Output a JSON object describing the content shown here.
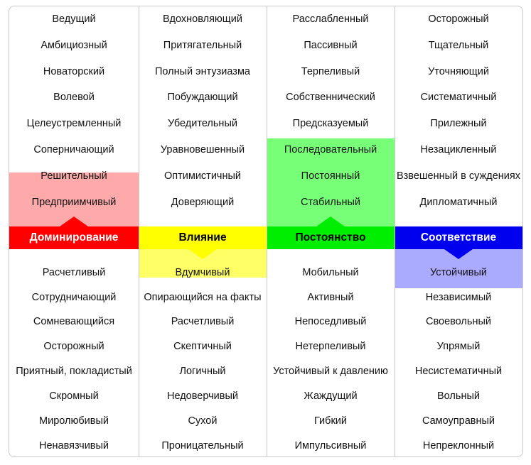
{
  "columns": [
    {
      "title": "Доминирование",
      "colors": {
        "header": "#ff0000",
        "title": "#ffffff",
        "highlight": "#ffaaaa"
      },
      "highlight": "top",
      "top_words": [
        "Ведущий",
        "Амбициозный",
        "Новаторский",
        "Волевой",
        "Целеустремленный",
        "Соперничающий",
        "Решительный",
        "Предприимчивый"
      ],
      "bottom_words": [
        "Расчетливый",
        "Сотрудничающий",
        "Сомневающийся",
        "Осторожный",
        "Приятный, покладистый",
        "Скромный",
        "Миролюбивый",
        "Ненавязчивый"
      ]
    },
    {
      "title": "Влияние",
      "colors": {
        "header": "#ffff00",
        "title": "#000000",
        "highlight": "#ffff66"
      },
      "highlight": "bottom",
      "top_words": [
        "Вдохновляющий",
        "Притягательный",
        "Полный энтузиазма",
        "Побуждающий",
        "Убедительный",
        "Уравновешенный",
        "Оптимистичный",
        "Доверяющий"
      ],
      "bottom_words": [
        "Вдумчивый",
        "Опирающийся на факты",
        "Расчетливый",
        "Скептичный",
        "Логичный",
        "Недоверчивый",
        "Сухой",
        "Проницательный"
      ]
    },
    {
      "title": "Постоянство",
      "colors": {
        "header": "#00ee00",
        "title": "#000000",
        "highlight": "#77ff77"
      },
      "highlight": "top",
      "top_words": [
        "Расслабленный",
        "Пассивный",
        "Терпеливый",
        "Собственнический",
        "Предсказуемый",
        "Последовательный",
        "Постоянный",
        "Стабильный"
      ],
      "bottom_words": [
        "Мобильный",
        "Активный",
        "Непоседливый",
        "Нетерпеливый",
        "Устойчивый к давлению",
        "Жаждущий",
        "Гибкий",
        "Импульсивный"
      ]
    },
    {
      "title": "Соответствие",
      "colors": {
        "header": "#0000ee",
        "title": "#ffffff",
        "highlight": "#aaaaff"
      },
      "highlight": "bottom",
      "top_words": [
        "Осторожный",
        "Тщательный",
        "Уточняющий",
        "Систематичный",
        "Прилежный",
        "Незацикленный",
        "Взвешенный в суждениях",
        "Дипломатичный"
      ],
      "bottom_words": [
        "Устойчивый",
        "Независимый",
        "Своевольный",
        "Упрямый",
        "Несистематичный",
        "Вольный",
        "Самоуправный",
        "Непреклонный"
      ]
    }
  ]
}
